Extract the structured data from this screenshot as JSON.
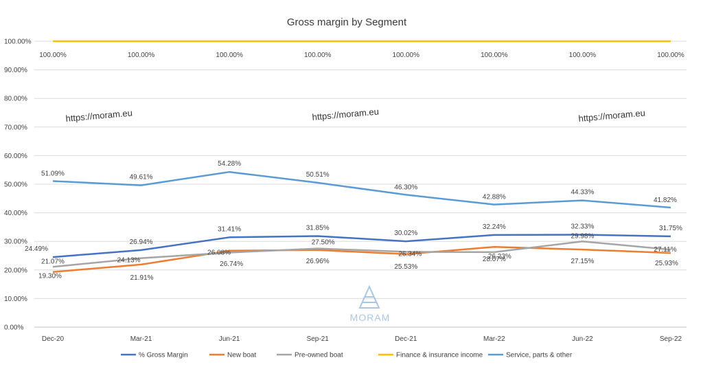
{
  "chart_data": {
    "type": "line",
    "title": "Gross margin by Segment",
    "xlabel": "",
    "ylabel": "",
    "categories": [
      "Dec-20",
      "Mar-21",
      "Jun-21",
      "Sep-21",
      "Dec-21",
      "Mar-22",
      "Jun-22",
      "Sep-22"
    ],
    "ylim": [
      0,
      1
    ],
    "yticks": [
      "0.00%",
      "10.00%",
      "20.00%",
      "30.00%",
      "40.00%",
      "50.00%",
      "60.00%",
      "70.00%",
      "80.00%",
      "90.00%",
      "100.00%"
    ],
    "grid": true,
    "legend_position": "bottom",
    "series": [
      {
        "name": "% Gross Margin",
        "color": "#4472c4",
        "values": [
          0.2449,
          0.2694,
          0.3141,
          0.3185,
          0.3002,
          0.3224,
          0.3233,
          0.3175
        ],
        "labels": [
          "24.49%",
          "26.94%",
          "31.41%",
          "31.85%",
          "30.02%",
          "32.24%",
          "32.33%",
          "31.75%"
        ]
      },
      {
        "name": "New boat",
        "color": "#ed7d31",
        "values": [
          0.193,
          0.2191,
          0.2674,
          0.2696,
          0.2553,
          0.2807,
          0.2715,
          0.2593
        ],
        "labels": [
          "19.30%",
          "21.91%",
          "26.74%",
          "26.96%",
          "25.53%",
          "28.07%",
          "27.15%",
          "25.93%"
        ]
      },
      {
        "name": "Pre-owned boat",
        "color": "#a5a5a5",
        "values": [
          0.2107,
          0.2413,
          0.2608,
          0.275,
          0.2634,
          0.2623,
          0.2998,
          0.2711
        ],
        "labels": [
          "21.07%",
          "24.13%",
          "26.08%",
          "27.50%",
          "26.34%",
          "26.23%",
          "29.98%",
          "27.11%"
        ]
      },
      {
        "name": "Finance & insurance income",
        "color": "#ffc000",
        "values": [
          1,
          1,
          1,
          1,
          1,
          1,
          1,
          1
        ],
        "labels": [
          "100.00%",
          "100.00%",
          "100.00%",
          "100.00%",
          "100.00%",
          "100.00%",
          "100.00%",
          "100.00%"
        ]
      },
      {
        "name": "Service, parts & other",
        "color": "#5b9bd5",
        "values": [
          0.5109,
          0.4961,
          0.5428,
          0.5051,
          0.463,
          0.4288,
          0.4433,
          0.4182
        ],
        "labels": [
          "51.09%",
          "49.61%",
          "54.28%",
          "50.51%",
          "46.30%",
          "42.88%",
          "44.33%",
          "41.82%"
        ]
      }
    ]
  },
  "watermark": {
    "text": "https://moram.eu",
    "logo_text": "MORAM"
  }
}
